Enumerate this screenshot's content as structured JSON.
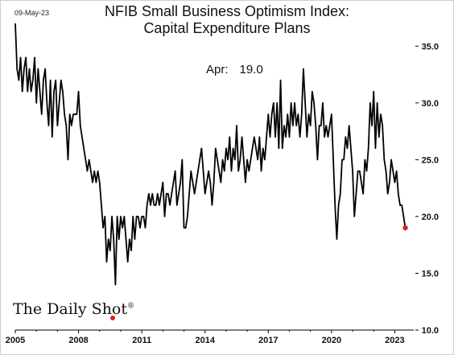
{
  "date_stamp": "09-May-23",
  "title_line1": "NFIB Small Business Optimism Index:",
  "title_line2": "Capital Expenditure Plans",
  "annotation": {
    "label": "Apr:",
    "value": "19.0"
  },
  "brand": {
    "name": "The Daily Shot",
    "mark": "®"
  },
  "colors": {
    "line": "#000000",
    "last_point": "#e0201c",
    "axis": "#000000"
  },
  "chart_data": {
    "type": "line",
    "title": "NFIB Small Business Optimism Index: Capital Expenditure Plans",
    "xlabel": "",
    "ylabel": "",
    "x_start": 2005.0,
    "x_step_months": 1,
    "xlim": [
      2005.0,
      2023.9
    ],
    "ylim": [
      10,
      37.5
    ],
    "x_ticks": [
      2005,
      2008,
      2011,
      2014,
      2017,
      2020,
      2023
    ],
    "x_tick_labels": [
      "2005",
      "2008",
      "2011",
      "2014",
      "2017",
      "2020",
      "2023"
    ],
    "y_ticks": [
      10,
      15,
      20,
      25,
      30,
      35
    ],
    "y_tick_labels": [
      "10.0",
      "15.0",
      "20.0",
      "25.0",
      "30.0",
      "35.0"
    ],
    "y_axis_side": "right",
    "grid": false,
    "last_point": {
      "label": "Apr 2023",
      "value": 19.0
    },
    "series": [
      {
        "values": [
          37,
          33,
          32,
          34,
          31,
          33,
          34,
          31,
          33,
          31,
          32,
          34,
          30,
          33,
          31,
          29,
          32,
          33,
          30,
          28,
          32,
          27,
          31,
          32,
          28,
          30,
          32,
          31,
          29,
          28,
          25,
          29,
          28,
          29,
          29,
          29,
          31,
          28,
          27,
          26,
          25,
          24,
          25,
          24,
          23,
          24,
          23,
          24,
          23,
          21,
          19,
          20,
          16,
          18,
          17,
          20,
          18,
          14,
          20,
          18,
          20,
          19,
          20,
          18,
          16,
          18,
          17,
          20,
          18,
          20,
          20,
          19,
          20,
          20,
          19,
          21,
          22,
          21,
          22,
          21,
          21,
          22,
          21,
          22,
          23,
          20,
          22,
          22,
          21,
          22,
          23,
          24,
          21,
          22,
          23,
          25,
          19,
          19,
          20,
          22,
          24,
          23,
          22,
          23,
          24,
          25,
          26,
          24,
          22,
          23,
          24,
          23,
          21,
          23,
          26,
          25,
          24,
          23,
          25,
          24,
          26,
          25,
          27,
          24,
          26,
          25,
          28,
          24,
          25,
          27,
          25,
          23,
          25,
          24,
          25,
          26,
          27,
          26,
          25,
          27,
          24,
          26,
          25,
          27,
          29,
          27,
          29,
          30,
          27,
          30,
          26,
          32,
          26,
          28,
          27,
          29,
          27,
          30,
          28,
          30,
          28,
          29,
          27,
          29,
          33,
          30,
          27,
          29,
          28,
          31,
          30,
          28,
          25,
          28,
          28,
          30,
          27,
          28,
          27,
          28,
          29,
          25,
          21,
          18,
          21,
          22,
          25,
          25,
          27,
          26,
          28,
          26,
          24,
          20,
          22,
          24,
          24,
          23,
          22,
          25,
          24,
          26,
          30,
          28,
          31,
          26,
          30,
          27,
          29,
          28,
          25,
          24,
          22,
          23,
          25,
          24,
          23,
          24,
          22,
          21,
          21,
          20,
          19
        ]
      }
    ]
  }
}
